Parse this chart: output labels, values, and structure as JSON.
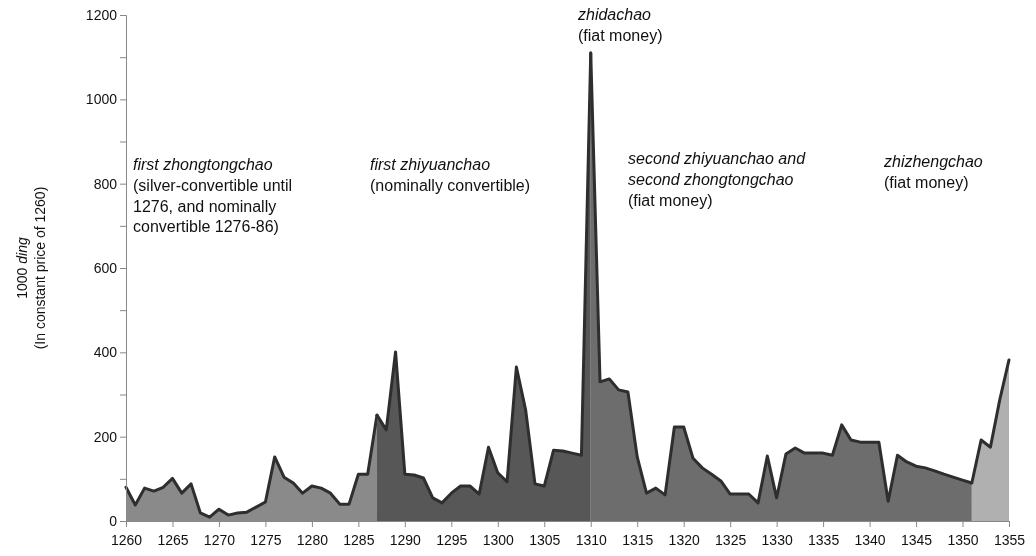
{
  "chart_data": {
    "type": "area",
    "ylabel": "1000 ding\n(In constant price of 1260)",
    "xlim": [
      1260,
      1355
    ],
    "xticks": [
      1260,
      1265,
      1270,
      1275,
      1280,
      1285,
      1290,
      1295,
      1300,
      1305,
      1310,
      1315,
      1320,
      1325,
      1330,
      1335,
      1340,
      1345,
      1350,
      1355
    ],
    "ylim": [
      0,
      1200
    ],
    "yticks": [
      0,
      {
        "value": 100,
        "label": null
      },
      200,
      {
        "value": 300,
        "label": null
      },
      400,
      {
        "value": 500,
        "label": null
      },
      600,
      {
        "value": 700,
        "label": null
      },
      800,
      {
        "value": 900,
        "label": null
      },
      1000,
      {
        "value": 1100,
        "label": null
      },
      1200
    ],
    "grid": false,
    "series": [
      {
        "color": "#8a8a8a",
        "x": [
          1260,
          1261,
          1262,
          1263,
          1264,
          1265,
          1266,
          1267,
          1268,
          1269,
          1270,
          1271,
          1272,
          1273,
          1274,
          1275,
          1276,
          1277,
          1278,
          1279,
          1280,
          1281,
          1282,
          1283,
          1284,
          1285,
          1286,
          1287
        ],
        "values": [
          80,
          38,
          78,
          71,
          80,
          101,
          66,
          88,
          19,
          9,
          28,
          14,
          19,
          21,
          33,
          45,
          152,
          104,
          90,
          66,
          83,
          78,
          66,
          40,
          40,
          111,
          111,
          251
        ]
      },
      {
        "color": "#575757",
        "x": [
          1287,
          1288,
          1289,
          1290,
          1291,
          1292,
          1293,
          1294,
          1295,
          1296,
          1297,
          1298,
          1299,
          1300,
          1301,
          1302,
          1303,
          1304,
          1305,
          1306,
          1307,
          1308,
          1309,
          1310
        ],
        "values": [
          251,
          216,
          401,
          111,
          109,
          102,
          55,
          43,
          66,
          83,
          83,
          64,
          175,
          114,
          93,
          365,
          263,
          88,
          83,
          168,
          166,
          161,
          156,
          1110
        ]
      },
      {
        "color": "#6d6d6d",
        "x": [
          1310,
          1311,
          1312,
          1313,
          1314,
          1315,
          1316,
          1317,
          1318,
          1319,
          1320,
          1321,
          1322,
          1323,
          1324,
          1325,
          1326,
          1327,
          1328,
          1329,
          1330,
          1331,
          1332,
          1333,
          1334,
          1335,
          1336,
          1337,
          1338,
          1339,
          1340,
          1341,
          1342,
          1343,
          1344,
          1345,
          1346,
          1347,
          1348,
          1349,
          1350,
          1351
        ],
        "values": [
          1110,
          330,
          337,
          311,
          306,
          152,
          66,
          78,
          62,
          223,
          223,
          149,
          126,
          111,
          95,
          64,
          64,
          64,
          43,
          154,
          55,
          159,
          173,
          161,
          161,
          161,
          156,
          228,
          192,
          187,
          187,
          187,
          47,
          156,
          140,
          130,
          126,
          119,
          111,
          104,
          97,
          90
        ]
      },
      {
        "color": "#b0b0b0",
        "x": [
          1351,
          1352,
          1353,
          1354,
          1355
        ],
        "values": [
          90,
          192,
          175,
          287,
          382
        ]
      }
    ],
    "annotations": [
      "first zhongtongchao\n(silver-convertible until\n1276, and nominally\nconvertible 1276-86)",
      "first zhiyuanchao\n(nominally convertible)",
      "zhidachao\n(fiat money)",
      "second zhiyuanchao and\nsecond zhongtongchao\n(fiat money)",
      "zhizhengchao\n(fiat money)"
    ]
  }
}
